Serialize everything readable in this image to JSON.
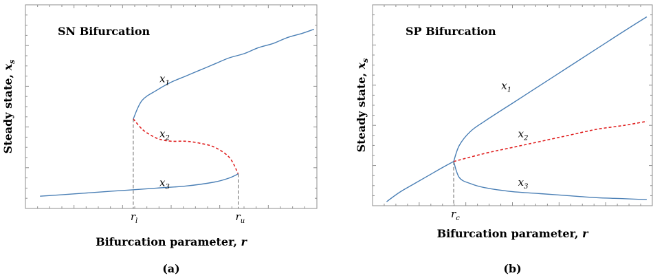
{
  "chart_data": [
    {
      "panel_label": "(a)",
      "type": "line",
      "title": "SN Bifurcation",
      "xlabel": "Bifurcation parameter, r",
      "ylabel": "Steady state, x_s",
      "x_ticks": [
        {
          "label": "r_l",
          "value": 0.37
        },
        {
          "label": "r_u",
          "value": 0.73
        }
      ],
      "xlim": [
        0,
        1
      ],
      "ylim": [
        0,
        1
      ],
      "grid": false,
      "series": [
        {
          "name": "x_1",
          "style": "solid",
          "color": "#4a7fb5",
          "x": [
            0.37,
            0.4,
            0.45,
            0.5,
            0.55,
            0.6,
            0.65,
            0.7,
            0.75,
            0.8,
            0.85,
            0.9,
            0.95,
            0.99
          ],
          "y": [
            0.44,
            0.53,
            0.58,
            0.62,
            0.65,
            0.68,
            0.71,
            0.74,
            0.76,
            0.79,
            0.81,
            0.84,
            0.86,
            0.88
          ]
        },
        {
          "name": "x_2",
          "style": "dashed",
          "color": "#e02020",
          "x": [
            0.37,
            0.4,
            0.43,
            0.46,
            0.5,
            0.55,
            0.6,
            0.65,
            0.7,
            0.73
          ],
          "y": [
            0.44,
            0.39,
            0.36,
            0.34,
            0.33,
            0.33,
            0.32,
            0.3,
            0.25,
            0.17
          ]
        },
        {
          "name": "x_3",
          "style": "solid",
          "color": "#4a7fb5",
          "x": [
            0.05,
            0.15,
            0.25,
            0.35,
            0.45,
            0.55,
            0.65,
            0.7,
            0.73
          ],
          "y": [
            0.06,
            0.07,
            0.08,
            0.09,
            0.1,
            0.11,
            0.13,
            0.15,
            0.17
          ]
        }
      ],
      "labels": [
        {
          "base": "x",
          "sub": "1",
          "x": 0.46,
          "y": 0.62
        },
        {
          "base": "x",
          "sub": "2",
          "x": 0.46,
          "y": 0.35
        },
        {
          "base": "x",
          "sub": "3",
          "x": 0.46,
          "y": 0.11
        }
      ]
    },
    {
      "panel_label": "(b)",
      "type": "line",
      "title": "SP Bifurcation",
      "xlabel": "Bifurcation parameter, r",
      "ylabel": "Steady state, x_s",
      "x_ticks": [
        {
          "label": "r_c",
          "value": 0.29
        }
      ],
      "xlim": [
        0,
        1
      ],
      "ylim": [
        0,
        1
      ],
      "grid": false,
      "series": [
        {
          "name": "x_1",
          "style": "solid",
          "color": "#4a7fb5",
          "x": [
            0.29,
            0.31,
            0.35,
            0.4,
            0.5,
            0.6,
            0.7,
            0.8,
            0.9,
            0.98
          ],
          "y": [
            0.22,
            0.3,
            0.37,
            0.42,
            0.51,
            0.6,
            0.69,
            0.78,
            0.87,
            0.94
          ]
        },
        {
          "name": "x_2",
          "style": "dashed",
          "color": "#e02020",
          "x": [
            0.29,
            0.4,
            0.5,
            0.6,
            0.7,
            0.8,
            0.9,
            0.98
          ],
          "y": [
            0.22,
            0.26,
            0.29,
            0.32,
            0.35,
            0.38,
            0.4,
            0.42
          ]
        },
        {
          "name": "x_3",
          "style": "solid",
          "color": "#4a7fb5",
          "x": [
            0.29,
            0.31,
            0.35,
            0.4,
            0.5,
            0.6,
            0.7,
            0.8,
            0.9,
            0.98
          ],
          "y": [
            0.22,
            0.14,
            0.11,
            0.09,
            0.07,
            0.06,
            0.05,
            0.04,
            0.035,
            0.03
          ]
        },
        {
          "name": "",
          "style": "solid",
          "color": "#4a7fb5",
          "x": [
            0.05,
            0.1,
            0.15,
            0.2,
            0.25,
            0.29
          ],
          "y": [
            0.02,
            0.07,
            0.11,
            0.15,
            0.19,
            0.22
          ]
        }
      ],
      "labels": [
        {
          "base": "x",
          "sub": "1",
          "x": 0.46,
          "y": 0.58
        },
        {
          "base": "x",
          "sub": "2",
          "x": 0.52,
          "y": 0.34
        },
        {
          "base": "x",
          "sub": "3",
          "x": 0.52,
          "y": 0.1
        }
      ]
    }
  ]
}
